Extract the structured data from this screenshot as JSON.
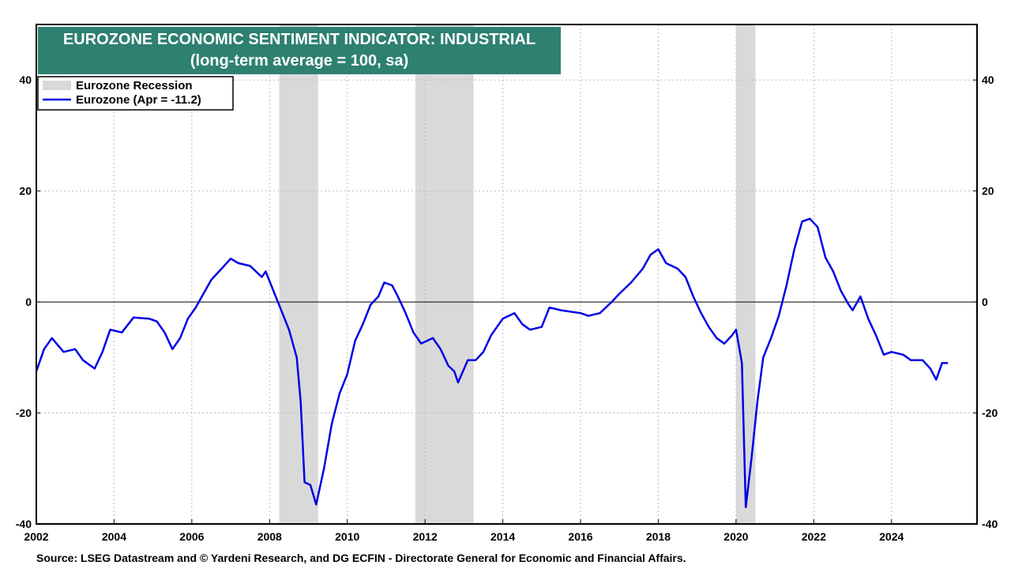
{
  "chart_data": {
    "type": "line",
    "title": "EUROZONE ECONOMIC SENTIMENT INDICATOR: INDUSTRIAL",
    "subtitle": "(long-term average = 100, sa)",
    "source": "Source: LSEG Datastream and © Yardeni Research, and DG ECFIN - Directorate General for Economic and Financial Affairs.",
    "xlabel": "",
    "ylabel": "",
    "xlim": [
      2002.0,
      2026.2
    ],
    "ylim": [
      -40,
      50
    ],
    "y_ticks": [
      -40,
      -20,
      0,
      20,
      40
    ],
    "y_tick_labels": [
      "-40",
      "-20",
      "0",
      "20",
      "40"
    ],
    "x_ticks": [
      2002,
      2004,
      2006,
      2008,
      2010,
      2012,
      2014,
      2016,
      2018,
      2020,
      2022,
      2024
    ],
    "x_tick_labels": [
      "2002",
      "2004",
      "2006",
      "2008",
      "2010",
      "2012",
      "2014",
      "2016",
      "2018",
      "2020",
      "2022",
      "2024"
    ],
    "grid": true,
    "zero_line": true,
    "legend_position": "top-left",
    "legend": [
      "Eurozone Recession",
      "Eurozone (Apr = -11.2)"
    ],
    "recessions": [
      {
        "start": 2008.25,
        "end": 2009.25
      },
      {
        "start": 2011.75,
        "end": 2013.25
      },
      {
        "start": 2020.0,
        "end": 2020.5
      }
    ],
    "series": [
      {
        "name": "Eurozone (Apr = -11.2)",
        "color": "#0000e6",
        "points": [
          [
            2002.0,
            -12.5
          ],
          [
            2002.2,
            -8.5
          ],
          [
            2002.4,
            -6.5
          ],
          [
            2002.7,
            -9.0
          ],
          [
            2003.0,
            -8.5
          ],
          [
            2003.2,
            -10.5
          ],
          [
            2003.5,
            -12.0
          ],
          [
            2003.7,
            -9.0
          ],
          [
            2003.9,
            -5.0
          ],
          [
            2004.2,
            -5.5
          ],
          [
            2004.5,
            -2.8
          ],
          [
            2004.9,
            -3.0
          ],
          [
            2005.1,
            -3.5
          ],
          [
            2005.3,
            -5.5
          ],
          [
            2005.5,
            -8.5
          ],
          [
            2005.7,
            -6.5
          ],
          [
            2005.9,
            -3.0
          ],
          [
            2006.1,
            -1.0
          ],
          [
            2006.3,
            1.5
          ],
          [
            2006.5,
            4.0
          ],
          [
            2006.7,
            5.5
          ],
          [
            2007.0,
            7.8
          ],
          [
            2007.2,
            7.0
          ],
          [
            2007.5,
            6.5
          ],
          [
            2007.8,
            4.5
          ],
          [
            2007.9,
            5.5
          ],
          [
            2008.1,
            2.0
          ],
          [
            2008.3,
            -1.5
          ],
          [
            2008.5,
            -5.0
          ],
          [
            2008.7,
            -10.0
          ],
          [
            2008.8,
            -18.0
          ],
          [
            2008.9,
            -32.5
          ],
          [
            2009.05,
            -33.0
          ],
          [
            2009.2,
            -36.5
          ],
          [
            2009.4,
            -30.0
          ],
          [
            2009.6,
            -22.0
          ],
          [
            2009.8,
            -16.5
          ],
          [
            2010.0,
            -13.0
          ],
          [
            2010.2,
            -7.0
          ],
          [
            2010.4,
            -4.0
          ],
          [
            2010.6,
            -0.5
          ],
          [
            2010.8,
            1.0
          ],
          [
            2010.95,
            3.5
          ],
          [
            2011.15,
            3.0
          ],
          [
            2011.3,
            1.0
          ],
          [
            2011.5,
            -2.0
          ],
          [
            2011.7,
            -5.5
          ],
          [
            2011.9,
            -7.5
          ],
          [
            2012.2,
            -6.5
          ],
          [
            2012.4,
            -8.5
          ],
          [
            2012.6,
            -11.5
          ],
          [
            2012.75,
            -12.5
          ],
          [
            2012.85,
            -14.5
          ],
          [
            2013.1,
            -10.5
          ],
          [
            2013.3,
            -10.5
          ],
          [
            2013.5,
            -9.0
          ],
          [
            2013.7,
            -6.0
          ],
          [
            2014.0,
            -3.0
          ],
          [
            2014.3,
            -2.0
          ],
          [
            2014.5,
            -4.0
          ],
          [
            2014.7,
            -5.0
          ],
          [
            2015.0,
            -4.5
          ],
          [
            2015.2,
            -1.0
          ],
          [
            2015.5,
            -1.5
          ],
          [
            2015.8,
            -1.8
          ],
          [
            2016.0,
            -2.0
          ],
          [
            2016.2,
            -2.5
          ],
          [
            2016.5,
            -2.0
          ],
          [
            2016.8,
            0.0
          ],
          [
            2017.0,
            1.5
          ],
          [
            2017.3,
            3.5
          ],
          [
            2017.6,
            6.0
          ],
          [
            2017.8,
            8.5
          ],
          [
            2018.0,
            9.5
          ],
          [
            2018.2,
            7.0
          ],
          [
            2018.5,
            6.0
          ],
          [
            2018.7,
            4.5
          ],
          [
            2018.9,
            1.0
          ],
          [
            2019.1,
            -2.0
          ],
          [
            2019.3,
            -4.5
          ],
          [
            2019.5,
            -6.5
          ],
          [
            2019.7,
            -7.5
          ],
          [
            2019.9,
            -6.0
          ],
          [
            2020.0,
            -5.0
          ],
          [
            2020.15,
            -11.0
          ],
          [
            2020.25,
            -37.0
          ],
          [
            2020.4,
            -28.0
          ],
          [
            2020.55,
            -18.0
          ],
          [
            2020.7,
            -10.0
          ],
          [
            2020.9,
            -6.5
          ],
          [
            2021.1,
            -2.5
          ],
          [
            2021.3,
            3.0
          ],
          [
            2021.5,
            9.5
          ],
          [
            2021.7,
            14.5
          ],
          [
            2021.9,
            15.0
          ],
          [
            2022.1,
            13.5
          ],
          [
            2022.3,
            8.0
          ],
          [
            2022.5,
            5.5
          ],
          [
            2022.7,
            2.0
          ],
          [
            2022.9,
            -0.5
          ],
          [
            2023.0,
            -1.5
          ],
          [
            2023.2,
            1.0
          ],
          [
            2023.4,
            -3.0
          ],
          [
            2023.6,
            -6.0
          ],
          [
            2023.8,
            -9.5
          ],
          [
            2024.0,
            -9.0
          ],
          [
            2024.3,
            -9.5
          ],
          [
            2024.5,
            -10.5
          ],
          [
            2024.8,
            -10.5
          ],
          [
            2025.0,
            -12.0
          ],
          [
            2025.15,
            -14.0
          ],
          [
            2025.3,
            -11.0
          ],
          [
            2025.45,
            -11.0
          ]
        ]
      }
    ]
  }
}
